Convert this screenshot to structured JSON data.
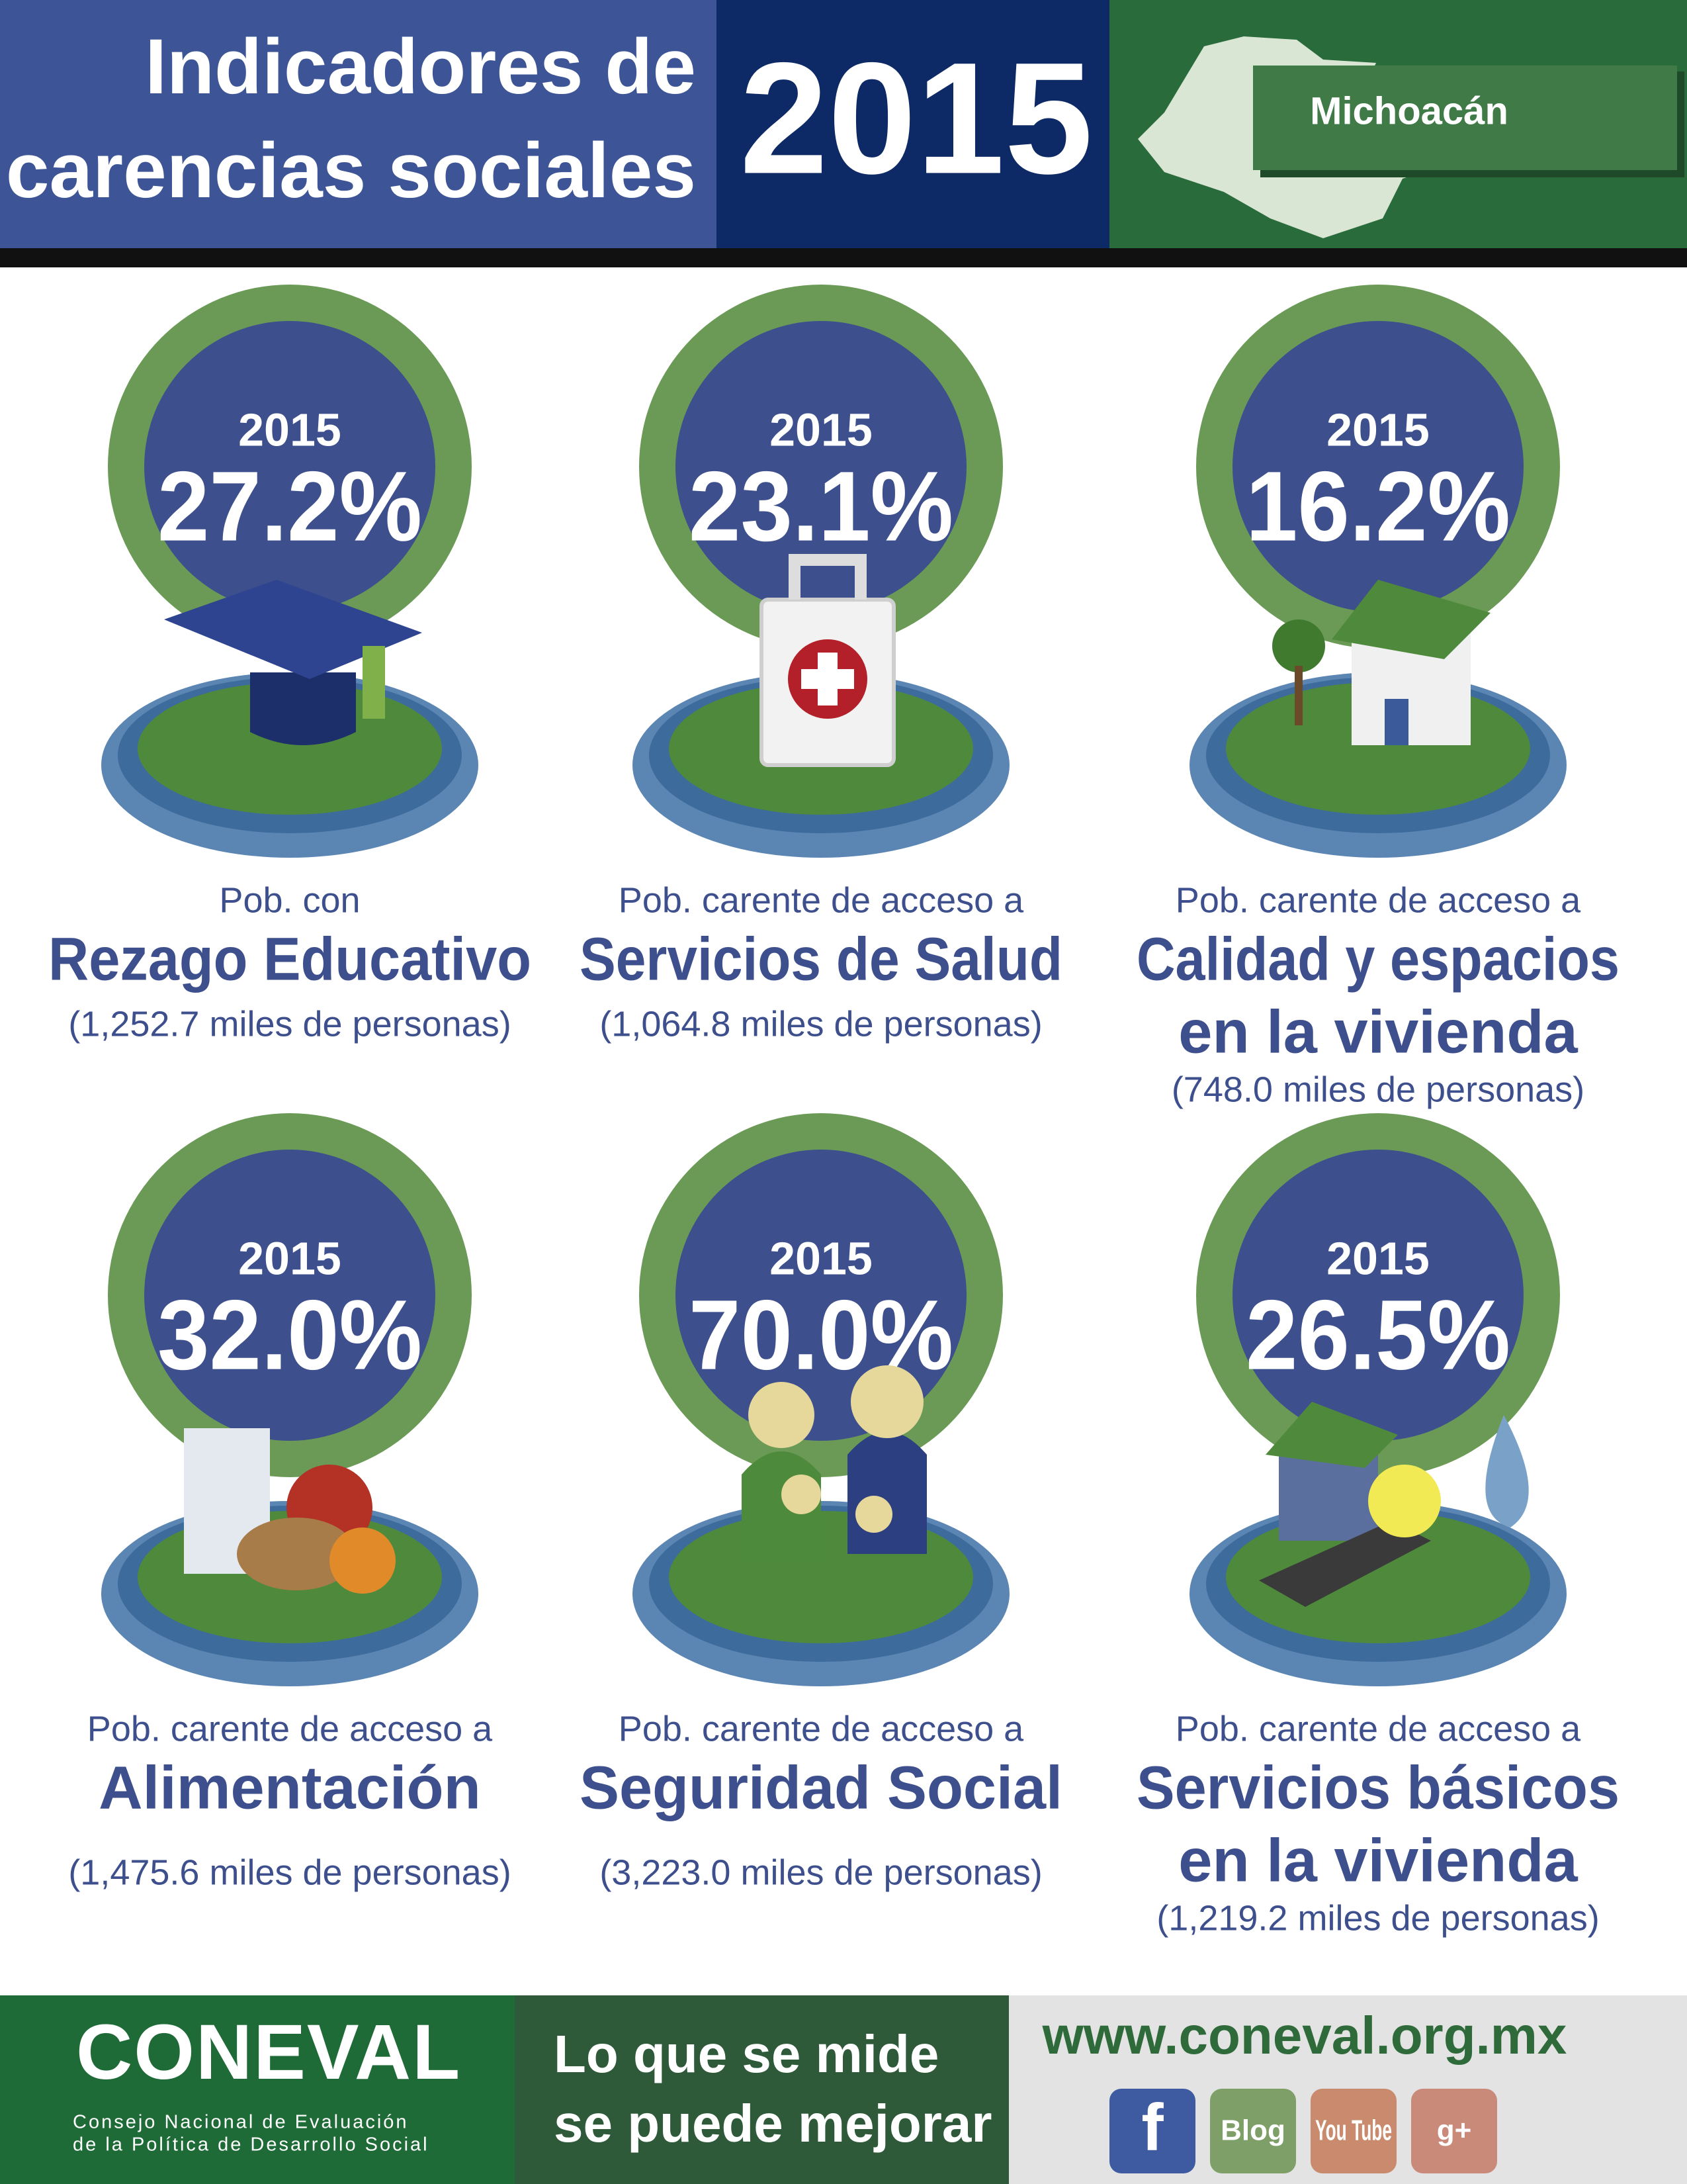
{
  "header": {
    "title_lines": [
      "Indicadores de",
      "carencias sociales"
    ],
    "year": "2015",
    "state": "Michoacán"
  },
  "indicators": [
    {
      "year": "2015",
      "percent": "27.2%",
      "prefix": "Pob. con",
      "name_lines": [
        "Rezago Educativo"
      ],
      "persons": "(1,252.7 miles de personas)"
    },
    {
      "year": "2015",
      "percent": "23.1%",
      "prefix": "Pob. carente de acceso a",
      "name_lines": [
        "Servicios de Salud"
      ],
      "persons": "(1,064.8 miles de personas)"
    },
    {
      "year": "2015",
      "percent": "16.2%",
      "prefix": "Pob. carente de acceso a",
      "name_lines": [
        "Calidad y espacios",
        "en la vivienda"
      ],
      "persons": "(748.0  miles de personas)"
    },
    {
      "year": "2015",
      "percent": "32.0%",
      "prefix": "Pob. carente de acceso a",
      "name_lines": [
        "Alimentación"
      ],
      "persons": "(1,475.6  miles de personas)"
    },
    {
      "year": "2015",
      "percent": "70.0%",
      "prefix": "Pob. carente de acceso a",
      "name_lines": [
        "Seguridad Social"
      ],
      "persons": "(3,223.0 miles de personas)"
    },
    {
      "year": "2015",
      "percent": "26.5%",
      "prefix": "Pob. carente de acceso a",
      "name_lines": [
        "Servicios básicos",
        "en la vivienda"
      ],
      "persons": "(1,219.2 miles de personas)"
    }
  ],
  "footer": {
    "logo": "CONEVAL",
    "logo_sub_lines": [
      "Consejo Nacional de Evaluación",
      "de la Política de Desarrollo Social"
    ],
    "slogan_lines": [
      "Lo que se mide",
      "se puede mejorar"
    ],
    "url": "www.coneval.org.mx",
    "social": [
      "f",
      "Blog",
      "You Tube",
      "g+"
    ]
  }
}
